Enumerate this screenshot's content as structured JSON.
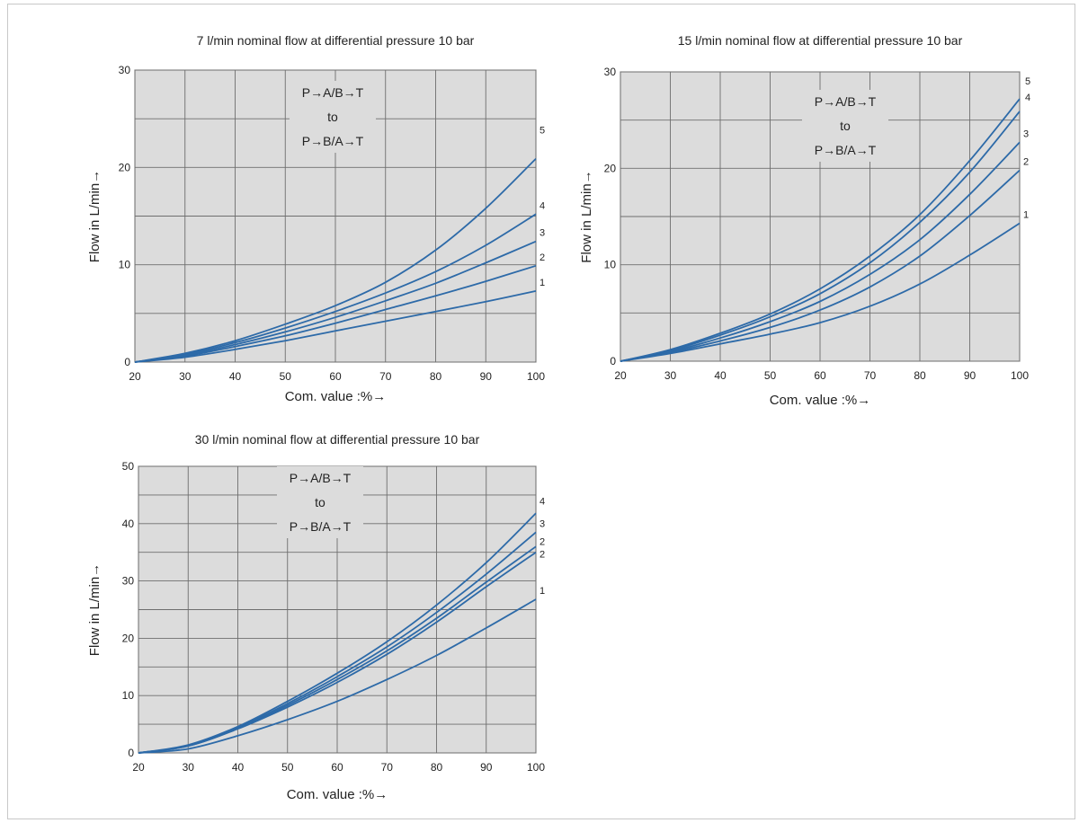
{
  "chart_data": [
    {
      "type": "line",
      "title": "7 l/min nominal flow at differential pressure 10 bar",
      "xlabel": "Com. value :%→",
      "ylabel": "Flow in L/min→",
      "annotation": [
        "P→A/B→T",
        "to",
        "P→B/A→T"
      ],
      "xlim": [
        20,
        100
      ],
      "ylim": [
        0,
        30
      ],
      "xticks": [
        20,
        30,
        40,
        50,
        60,
        70,
        80,
        90,
        100
      ],
      "yticks": [
        0,
        10,
        20,
        30
      ],
      "grid": true,
      "x": [
        20,
        30,
        40,
        50,
        60,
        70,
        80,
        90,
        100
      ],
      "series": [
        {
          "name": "1",
          "values": [
            0,
            0.5,
            1.3,
            2.2,
            3.2,
            4.2,
            5.2,
            6.2,
            7.3
          ]
        },
        {
          "name": "2",
          "values": [
            0,
            0.6,
            1.6,
            2.7,
            4.0,
            5.4,
            6.8,
            8.3,
            9.9
          ]
        },
        {
          "name": "3",
          "values": [
            0,
            0.7,
            1.8,
            3.1,
            4.6,
            6.3,
            8.1,
            10.2,
            12.4
          ]
        },
        {
          "name": "4",
          "values": [
            0,
            0.8,
            2.0,
            3.5,
            5.2,
            7.1,
            9.3,
            12.0,
            15.2
          ]
        },
        {
          "name": "5",
          "values": [
            0,
            0.9,
            2.2,
            3.9,
            5.8,
            8.2,
            11.5,
            15.8,
            20.9
          ]
        }
      ]
    },
    {
      "type": "line",
      "title": "15 l/min nominal flow at differential pressure 10 bar",
      "xlabel": "Com. value :%→",
      "ylabel": "Flow in L/min→",
      "annotation": [
        "P→A/B→T",
        "to",
        "P→B/A→T"
      ],
      "xlim": [
        20,
        100
      ],
      "ylim": [
        0,
        30
      ],
      "xticks": [
        20,
        30,
        40,
        50,
        60,
        70,
        80,
        90,
        100
      ],
      "yticks": [
        0,
        10,
        20,
        30
      ],
      "grid": true,
      "x": [
        20,
        30,
        40,
        50,
        60,
        70,
        80,
        90,
        100
      ],
      "series": [
        {
          "name": "1",
          "values": [
            0,
            0.8,
            1.8,
            2.8,
            4.0,
            5.7,
            8.0,
            11.0,
            14.3
          ]
        },
        {
          "name": "2",
          "values": [
            0,
            0.9,
            2.1,
            3.5,
            5.3,
            7.7,
            10.9,
            15.1,
            19.8
          ]
        },
        {
          "name": "3",
          "values": [
            0,
            1.0,
            2.4,
            4.1,
            6.2,
            9.0,
            12.6,
            17.3,
            22.7
          ]
        },
        {
          "name": "4",
          "values": [
            0,
            1.1,
            2.7,
            4.6,
            7.0,
            10.2,
            14.4,
            19.6,
            25.9
          ]
        },
        {
          "name": "5",
          "values": [
            0,
            1.2,
            2.9,
            4.9,
            7.5,
            10.9,
            15.2,
            20.8,
            27.2
          ]
        }
      ]
    },
    {
      "type": "line",
      "title": "30 l/min nominal flow at differential pressure 10 bar",
      "xlabel": "Com. value :%→",
      "ylabel": "Flow in L/min→",
      "annotation": [
        "P→A/B→T",
        "to",
        "P→B/A→T"
      ],
      "xlim": [
        20,
        100
      ],
      "ylim": [
        0,
        50
      ],
      "xticks": [
        20,
        30,
        40,
        50,
        60,
        70,
        80,
        90,
        100
      ],
      "yticks": [
        0,
        10,
        20,
        30,
        40,
        50
      ],
      "grid": true,
      "x": [
        20,
        30,
        40,
        50,
        60,
        70,
        80,
        90,
        100
      ],
      "series": [
        {
          "name": "1",
          "values": [
            0,
            0.7,
            3.0,
            5.8,
            9.0,
            12.8,
            17.0,
            21.8,
            26.8
          ]
        },
        {
          "name": "2",
          "values": [
            0,
            1.2,
            4.2,
            8.0,
            12.3,
            17.2,
            22.8,
            29.0,
            35.0
          ]
        },
        {
          "name": "2",
          "values": [
            0,
            1.2,
            4.3,
            8.3,
            12.8,
            17.8,
            23.5,
            29.8,
            36.0
          ]
        },
        {
          "name": "3",
          "values": [
            0,
            1.3,
            4.4,
            8.6,
            13.3,
            18.5,
            24.5,
            31.2,
            38.5
          ]
        },
        {
          "name": "4",
          "values": [
            0,
            1.4,
            4.6,
            9.0,
            13.9,
            19.4,
            25.8,
            33.2,
            41.8
          ]
        }
      ]
    }
  ],
  "colors": {
    "line": "#2d6aa8",
    "plot_bg": "#dcdcdc",
    "grid": "#6e6e6e"
  }
}
